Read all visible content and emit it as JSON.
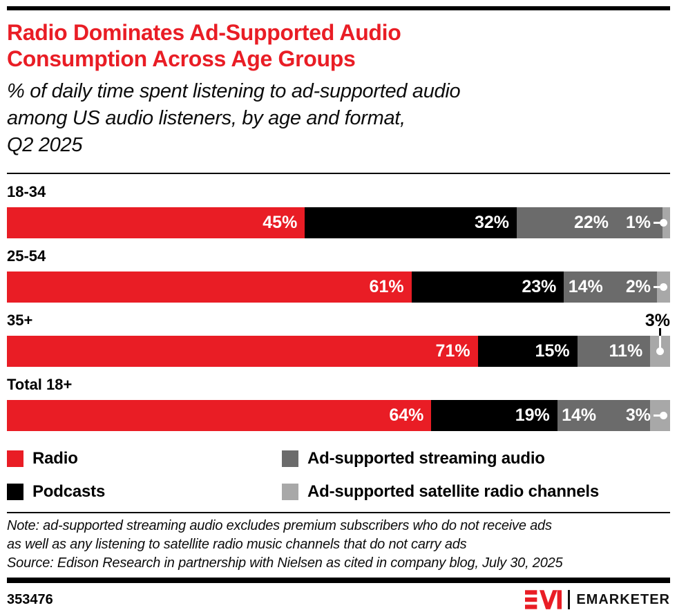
{
  "header": {
    "title_lines": [
      "Radio Dominates Ad-Supported Audio",
      "Consumption Across Age Groups"
    ],
    "subtitle_lines": [
      "% of daily time spent listening to ad-supported audio",
      "among US audio listeners, by age and format,",
      "Q2 2025"
    ]
  },
  "chart_data": {
    "type": "bar",
    "variant": "horizontal-stacked-100pct",
    "unit": "%",
    "xlim": [
      0,
      100
    ],
    "grid": false,
    "legend_position": "bottom",
    "series": [
      {
        "name": "Radio",
        "color": "#e91d25"
      },
      {
        "name": "Podcasts",
        "color": "#000000"
      },
      {
        "name": "Ad-supported streaming audio",
        "color": "#6b6b6b"
      },
      {
        "name": "Ad-supported satellite radio channels",
        "color": "#a8a8a8"
      }
    ],
    "rows": [
      {
        "label": "18-34",
        "values": [
          45,
          32,
          22,
          1
        ],
        "last_label_placement": "inline"
      },
      {
        "label": "25-54",
        "values": [
          61,
          23,
          14,
          2
        ],
        "last_label_placement": "inline"
      },
      {
        "label": "35+",
        "values": [
          71,
          15,
          11,
          3
        ],
        "last_label_placement": "above"
      },
      {
        "label": "Total 18+",
        "values": [
          64,
          19,
          14,
          3
        ],
        "last_label_placement": "inline"
      }
    ]
  },
  "notes": {
    "note_lines": [
      "Note: ad-supported streaming audio excludes premium subscribers who do not receive ads",
      "as well as any listening to satellite radio music channels that do not carry ads"
    ],
    "source": "Source: Edison Research in partnership with Nielsen as cited in company blog, July 30, 2025"
  },
  "footer": {
    "chart_id": "353476",
    "brand": "EMARKETER",
    "logo_monogram": "EM",
    "brand_red": "#e91d25"
  }
}
